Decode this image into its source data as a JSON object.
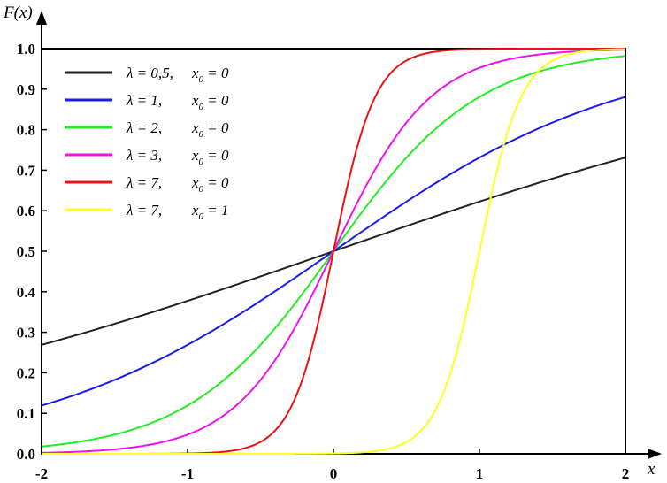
{
  "chart_data": {
    "type": "line",
    "title": "",
    "xlabel": "x",
    "ylabel": "F(x)",
    "xlim": [
      -2,
      2
    ],
    "ylim": [
      0,
      1
    ],
    "xticks": [
      -2,
      -1,
      0,
      1,
      2
    ],
    "xtick_labels": [
      "-2",
      "-1",
      "0",
      "1",
      "2"
    ],
    "yticks": [
      0,
      0.1,
      0.2,
      0.3,
      0.4,
      0.5,
      0.6,
      0.7,
      0.8,
      0.9,
      1.0
    ],
    "ytick_labels": [
      "0.0",
      "0.1",
      "0.2",
      "0.3",
      "0.4",
      "0.5",
      "0.6",
      "0.7",
      "0.8",
      "0.9",
      "1.0"
    ],
    "grid": false,
    "legend_position": "top-left",
    "function": "logistic CDF F(x) = 1/(1+exp(-lambda*(x-x0)))",
    "series": [
      {
        "lambda": 0.5,
        "x0": 0,
        "color": "#222222",
        "legend_parts": [
          "λ = 0,5,",
          "x",
          "0",
          " = 0"
        ]
      },
      {
        "lambda": 1,
        "x0": 0,
        "color": "#1a1aee",
        "legend_parts": [
          "λ = 1,",
          "x",
          "0",
          " = 0"
        ]
      },
      {
        "lambda": 2,
        "x0": 0,
        "color": "#22ee22",
        "legend_parts": [
          "λ = 2,",
          "x",
          "0",
          " = 0"
        ]
      },
      {
        "lambda": 3,
        "x0": 0,
        "color": "#ee11ee",
        "legend_parts": [
          "λ = 3,",
          "x",
          "0",
          " = 0"
        ]
      },
      {
        "lambda": 7,
        "x0": 0,
        "color": "#ee1111",
        "legend_parts": [
          "λ = 7,",
          "x",
          "0",
          " = 0"
        ]
      },
      {
        "lambda": 7,
        "x0": 1,
        "color": "#ffff22",
        "legend_parts": [
          "λ = 7,",
          "x",
          "0",
          " = 1"
        ]
      }
    ]
  }
}
